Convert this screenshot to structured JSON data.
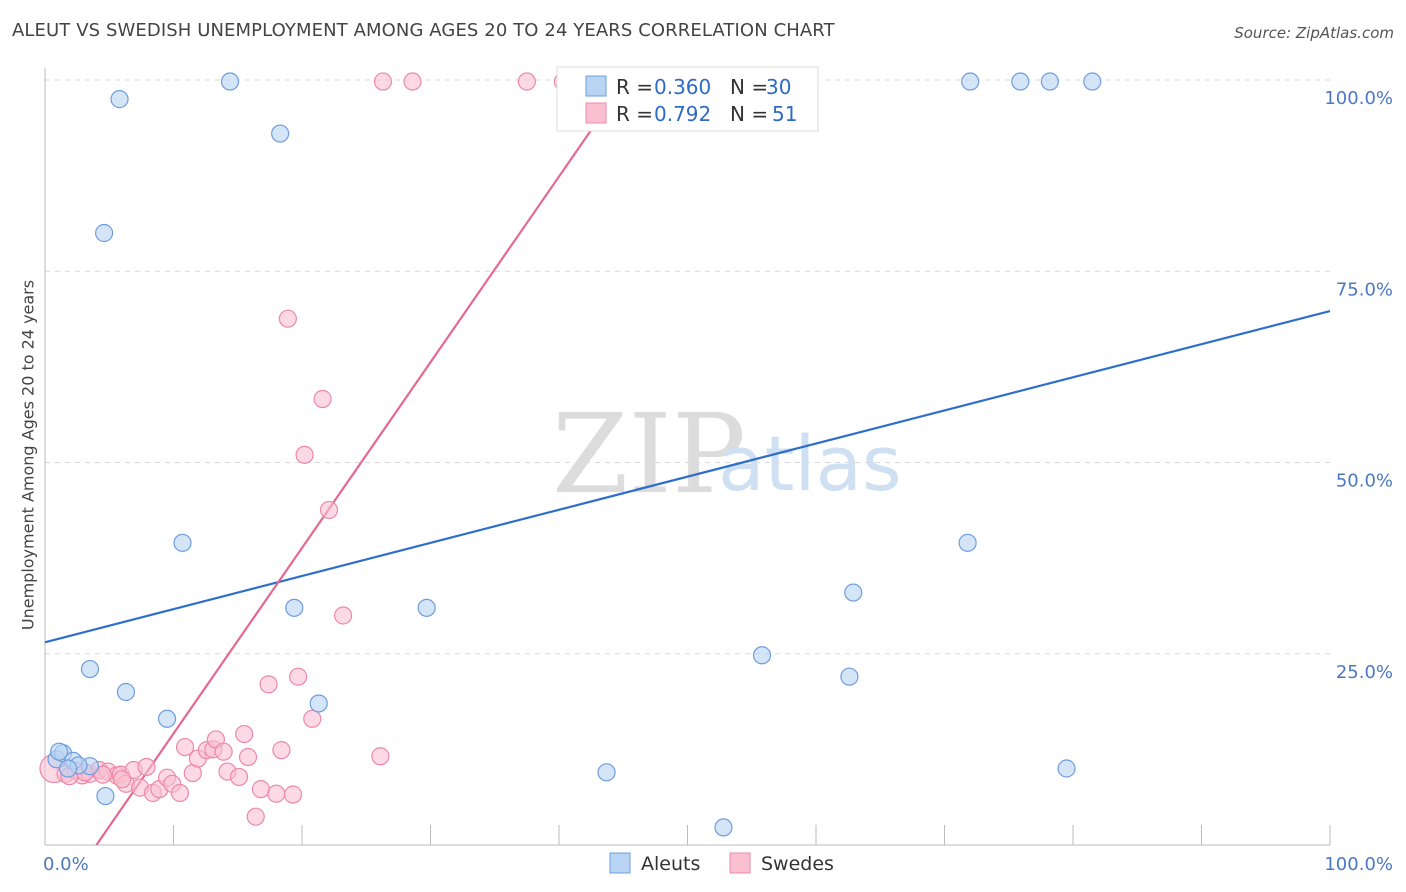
{
  "header": {
    "title": "ALEUT VS SWEDISH UNEMPLOYMENT AMONG AGES 20 TO 24 YEARS CORRELATION CHART",
    "source": "Source: ZipAtlas.com"
  },
  "watermark": {
    "zip": "ZIP",
    "atlas": "atlas"
  },
  "colors": {
    "aleuts_fill": "#b9d3f3",
    "aleuts_stroke": "#6d9de0",
    "aleuts_line": "#2f6fcc",
    "swedes_fill": "#fac0d2",
    "swedes_stroke": "#ec89a9",
    "swedes_line": "#e3698f",
    "grid": "#d9d9d9",
    "axis_label": "#4a78c2"
  },
  "legend": {
    "rows": [
      {
        "r_label": "R =",
        "r_value": "0.360",
        "n_label": "N =",
        "n_value": "30"
      },
      {
        "r_label": "R =",
        "r_value": "0.792",
        "n_label": "N =",
        "n_value": "51"
      }
    ]
  },
  "bottom_legend": {
    "aleuts": "Aleuts",
    "swedes": "Swedes"
  },
  "chart_data": {
    "type": "scatter",
    "title": "ALEUT VS SWEDISH UNEMPLOYMENT AMONG AGES 20 TO 24 YEARS CORRELATION CHART",
    "xlabel": "",
    "ylabel": "Unemployment Among Ages 20 to 24 years",
    "xlim": [
      0,
      100
    ],
    "ylim": [
      0,
      100
    ],
    "x_tick_labels": [
      "0.0%",
      "100.0%"
    ],
    "y_tick_labels": [
      {
        "value": 25,
        "label": "25.0%"
      },
      {
        "value": 50,
        "label": "50.0%"
      },
      {
        "value": 75,
        "label": "75.0%"
      },
      {
        "value": 100,
        "label": "100.0%"
      }
    ],
    "series": [
      {
        "name": "Aleuts",
        "r": 0.36,
        "n": 30,
        "trend": {
          "x": [
            0,
            100
          ],
          "y": [
            26.5,
            69.8
          ]
        },
        "points": [
          {
            "x": 0.9,
            "y": 11.2
          },
          {
            "x": 1.4,
            "y": 12.0
          },
          {
            "x": 2.2,
            "y": 11.0
          },
          {
            "x": 3.5,
            "y": 10.3
          },
          {
            "x": 2.6,
            "y": 10.4
          },
          {
            "x": 4.7,
            "y": 6.4
          },
          {
            "x": 3.5,
            "y": 23.0
          },
          {
            "x": 6.3,
            "y": 20.0
          },
          {
            "x": 9.5,
            "y": 16.5
          },
          {
            "x": 10.7,
            "y": 39.5
          },
          {
            "x": 5.8,
            "y": 97.5
          },
          {
            "x": 14.4,
            "y": 99.8
          },
          {
            "x": 18.3,
            "y": 93.0
          },
          {
            "x": 4.6,
            "y": 80.0
          },
          {
            "x": 19.4,
            "y": 31.0
          },
          {
            "x": 21.3,
            "y": 18.5
          },
          {
            "x": 29.7,
            "y": 31.0
          },
          {
            "x": 43.7,
            "y": 9.5
          },
          {
            "x": 52.8,
            "y": 2.3
          },
          {
            "x": 55.8,
            "y": 24.8
          },
          {
            "x": 62.6,
            "y": 22.0
          },
          {
            "x": 62.9,
            "y": 33.0
          },
          {
            "x": 71.8,
            "y": 39.5
          },
          {
            "x": 72.0,
            "y": 99.8
          },
          {
            "x": 75.9,
            "y": 99.8
          },
          {
            "x": 78.2,
            "y": 99.8
          },
          {
            "x": 81.5,
            "y": 99.8
          },
          {
            "x": 79.5,
            "y": 10.0
          },
          {
            "x": 1.1,
            "y": 12.2
          },
          {
            "x": 1.8,
            "y": 10.0
          }
        ]
      },
      {
        "name": "Swedes",
        "r": 0.792,
        "n": 51,
        "trend": {
          "x": [
            4.0,
            45.2
          ],
          "y": [
            0,
            100
          ]
        },
        "points": [
          {
            "x": 0.7,
            "y": 10.0,
            "big": true
          },
          {
            "x": 1.6,
            "y": 9.3
          },
          {
            "x": 2.4,
            "y": 9.7
          },
          {
            "x": 2.9,
            "y": 9.1
          },
          {
            "x": 3.5,
            "y": 9.3
          },
          {
            "x": 4.2,
            "y": 9.8
          },
          {
            "x": 4.9,
            "y": 9.6
          },
          {
            "x": 5.6,
            "y": 9.1
          },
          {
            "x": 5.9,
            "y": 9.2
          },
          {
            "x": 6.3,
            "y": 8.0
          },
          {
            "x": 6.9,
            "y": 9.8
          },
          {
            "x": 7.4,
            "y": 7.5
          },
          {
            "x": 7.9,
            "y": 10.2
          },
          {
            "x": 8.4,
            "y": 6.8
          },
          {
            "x": 8.9,
            "y": 7.3
          },
          {
            "x": 9.5,
            "y": 8.8
          },
          {
            "x": 9.9,
            "y": 8.0
          },
          {
            "x": 10.5,
            "y": 6.8
          },
          {
            "x": 10.9,
            "y": 12.8
          },
          {
            "x": 11.5,
            "y": 9.4
          },
          {
            "x": 11.9,
            "y": 11.3
          },
          {
            "x": 12.6,
            "y": 12.4
          },
          {
            "x": 13.1,
            "y": 12.5
          },
          {
            "x": 13.3,
            "y": 13.8
          },
          {
            "x": 13.9,
            "y": 12.2
          },
          {
            "x": 14.2,
            "y": 9.6
          },
          {
            "x": 15.1,
            "y": 8.9
          },
          {
            "x": 15.5,
            "y": 14.5
          },
          {
            "x": 15.8,
            "y": 11.5
          },
          {
            "x": 16.4,
            "y": 3.7
          },
          {
            "x": 16.8,
            "y": 7.3
          },
          {
            "x": 17.4,
            "y": 21.0
          },
          {
            "x": 18.0,
            "y": 6.7
          },
          {
            "x": 18.4,
            "y": 12.4
          },
          {
            "x": 19.3,
            "y": 6.6
          },
          {
            "x": 19.7,
            "y": 22.0
          },
          {
            "x": 20.8,
            "y": 16.5
          },
          {
            "x": 22.1,
            "y": 43.8
          },
          {
            "x": 23.2,
            "y": 30.0
          },
          {
            "x": 20.2,
            "y": 51.0
          },
          {
            "x": 21.6,
            "y": 58.3
          },
          {
            "x": 18.9,
            "y": 68.8
          },
          {
            "x": 26.1,
            "y": 11.6
          },
          {
            "x": 26.3,
            "y": 99.8
          },
          {
            "x": 28.6,
            "y": 99.8
          },
          {
            "x": 37.5,
            "y": 99.8
          },
          {
            "x": 40.3,
            "y": 99.8
          },
          {
            "x": 1.9,
            "y": 9.0
          },
          {
            "x": 3.1,
            "y": 9.5
          },
          {
            "x": 4.5,
            "y": 9.2
          },
          {
            "x": 6.0,
            "y": 8.6
          }
        ]
      }
    ]
  }
}
